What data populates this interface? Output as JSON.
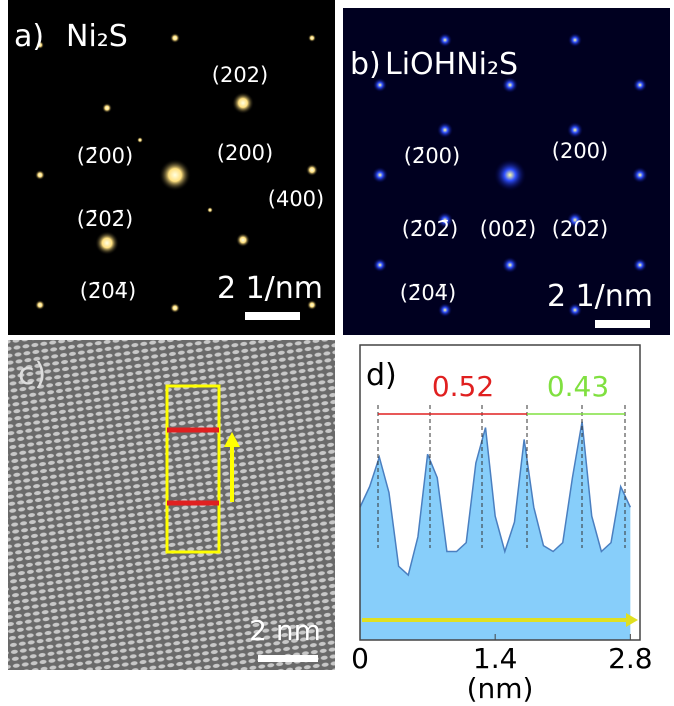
{
  "panels": {
    "a": {
      "label": "a)",
      "sample": "Ni₂S",
      "indices": [
        "(202)",
        "(2̄00)",
        "(200)",
        "(400)",
        "(2̄02̄)",
        "(2̄04̄)"
      ],
      "scale_bar": "2 1/nm"
    },
    "b": {
      "label": "b)",
      "sample": "LiOHNi₂S",
      "indices": [
        "(2̄00)",
        "(200)",
        "(2̄02̄)",
        "(002̄)",
        "(202̄)",
        "(2̄04̄)"
      ],
      "scale_bar": "2 1/nm"
    },
    "c": {
      "label": "c)",
      "scale_bar": "2 nm"
    }
  },
  "chart_data": {
    "type": "area",
    "label": "d)",
    "x_label": "(nm)",
    "x": [
      0,
      0.1,
      0.2,
      0.3,
      0.4,
      0.5,
      0.6,
      0.7,
      0.8,
      0.9,
      1.0,
      1.1,
      1.2,
      1.3,
      1.4,
      1.5,
      1.6,
      1.7,
      1.8,
      1.9,
      2.0,
      2.1,
      2.2,
      2.3,
      2.4,
      2.5,
      2.6,
      2.7,
      2.8
    ],
    "values": [
      0.45,
      0.52,
      0.62,
      0.5,
      0.25,
      0.22,
      0.35,
      0.63,
      0.55,
      0.3,
      0.3,
      0.33,
      0.6,
      0.72,
      0.42,
      0.3,
      0.4,
      0.68,
      0.45,
      0.32,
      0.3,
      0.33,
      0.55,
      0.74,
      0.42,
      0.3,
      0.33,
      0.52,
      0.45
    ],
    "color": "#87cefa",
    "xlim": [
      0,
      2.9
    ],
    "ylim": [
      0,
      1
    ],
    "xticks": [
      0,
      1.4,
      2.8
    ],
    "annotations": [
      "0.52",
      "0.43"
    ]
  }
}
